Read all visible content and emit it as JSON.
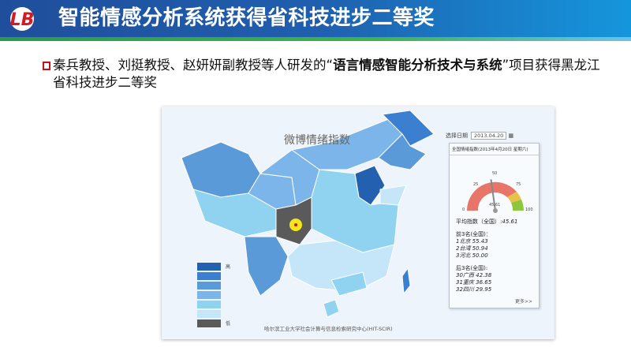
{
  "header": {
    "title": "智能情感分析系统获得省科技进步二等奖",
    "logo_text": "LB"
  },
  "bullet": {
    "text_before": "秦兵教授、刘挺教授、赵妍妍副教授等人研发的“",
    "text_bold": "语言情感智能分析技术与系统",
    "text_after": "”项目获得黑龙江省科技进步二等奖"
  },
  "map": {
    "title": "微博情绪指数",
    "footer": "哈尔滨工业大学社会计算与信息检索研究中心(HIT-SCIR)",
    "legend": {
      "high": "高",
      "low": "低",
      "colors": [
        "#2360b0",
        "#3a7fd0",
        "#5b9ad8",
        "#7bb5ea",
        "#8fd3f0",
        "#c4e6f8",
        "#5a5a5a"
      ]
    },
    "date_label": "选择日期",
    "date_value": "2013.04.20",
    "card": {
      "header": "全国情绪指数(2013年4月20日  星期六)",
      "gauge": {
        "min": "0",
        "t25": "25",
        "t50": "50",
        "t75": "75",
        "max": "100",
        "value": 45.61,
        "value_label": "45.61"
      },
      "avg_label": "平均指数（全国）:",
      "avg_value": "45.61",
      "top_label": "前3名(全国)：",
      "top": [
        "1北京 55.43",
        "2台湾 50.94",
        "3河北 50.00"
      ],
      "bottom_label": "后3名(全国):",
      "bottom": [
        "30广西 42.38",
        "31重庆 36.65",
        "32四川 29.95"
      ],
      "more": "更多>>"
    }
  }
}
